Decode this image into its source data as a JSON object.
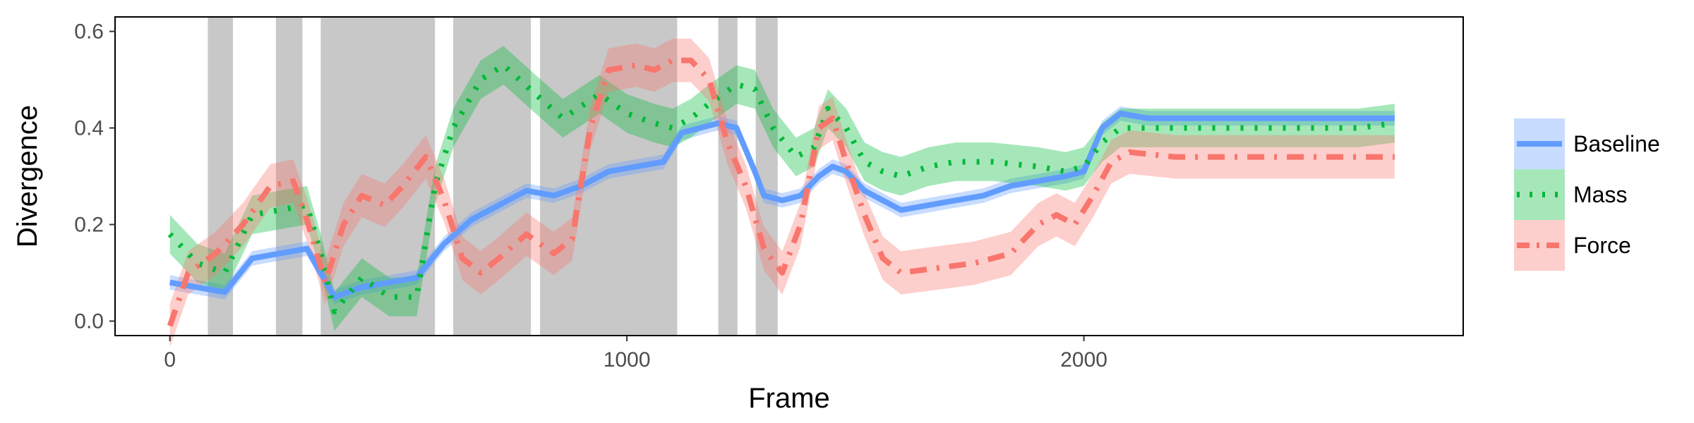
{
  "chart_data": {
    "type": "line",
    "title": "",
    "xlabel": "Frame",
    "ylabel": "Divergence",
    "xlim": [
      -120,
      2830
    ],
    "ylim": [
      -0.03,
      0.63
    ],
    "x_ticks": [
      0,
      1000,
      2000
    ],
    "x_tick_labels": [
      "0",
      "1000",
      "2000"
    ],
    "y_ticks": [
      0.0,
      0.2,
      0.4,
      0.6
    ],
    "y_tick_labels": [
      "0.0",
      "0.2",
      "0.4",
      "0.6"
    ],
    "grid": false,
    "legend_position": "right",
    "shaded_intervals": [
      [
        83,
        138
      ],
      [
        232,
        290
      ],
      [
        330,
        580
      ],
      [
        620,
        790
      ],
      [
        810,
        1110
      ],
      [
        1200,
        1242
      ],
      [
        1282,
        1330
      ]
    ],
    "series": [
      {
        "name": "Baseline",
        "color": "#619CFF",
        "linestyle": "solid",
        "band_halfwidth": 0.015,
        "x": [
          0,
          60,
          120,
          180,
          240,
          300,
          330,
          360,
          420,
          480,
          540,
          600,
          660,
          720,
          780,
          840,
          900,
          960,
          1020,
          1080,
          1120,
          1160,
          1200,
          1240,
          1280,
          1300,
          1340,
          1380,
          1420,
          1450,
          1480,
          1520,
          1560,
          1600,
          1660,
          1720,
          1780,
          1840,
          1900,
          1960,
          2000,
          2040,
          2080,
          2140,
          2200,
          2400,
          2600,
          2680
        ],
        "y": [
          0.08,
          0.07,
          0.06,
          0.13,
          0.14,
          0.15,
          0.1,
          0.05,
          0.07,
          0.08,
          0.09,
          0.16,
          0.21,
          0.24,
          0.27,
          0.26,
          0.28,
          0.31,
          0.32,
          0.33,
          0.39,
          0.4,
          0.41,
          0.4,
          0.31,
          0.26,
          0.25,
          0.26,
          0.3,
          0.32,
          0.31,
          0.27,
          0.25,
          0.23,
          0.24,
          0.25,
          0.26,
          0.28,
          0.29,
          0.3,
          0.31,
          0.4,
          0.43,
          0.42,
          0.42,
          0.42,
          0.42,
          0.42
        ]
      },
      {
        "name": "Mass",
        "color": "#00BA38",
        "linestyle": "dotted",
        "band_halfwidth": 0.04,
        "x": [
          0,
          60,
          120,
          180,
          240,
          300,
          330,
          360,
          420,
          480,
          540,
          580,
          620,
          680,
          730,
          800,
          860,
          940,
          1000,
          1060,
          1100,
          1140,
          1180,
          1240,
          1280,
          1320,
          1370,
          1410,
          1440,
          1480,
          1520,
          1560,
          1600,
          1660,
          1720,
          1800,
          1900,
          1960,
          2000,
          2040,
          2080,
          2140,
          2200,
          2400,
          2600,
          2680
        ],
        "y": [
          0.18,
          0.12,
          0.1,
          0.22,
          0.23,
          0.24,
          0.14,
          0.02,
          0.09,
          0.05,
          0.05,
          0.28,
          0.4,
          0.5,
          0.53,
          0.47,
          0.42,
          0.47,
          0.43,
          0.41,
          0.4,
          0.42,
          0.45,
          0.49,
          0.48,
          0.4,
          0.34,
          0.36,
          0.44,
          0.4,
          0.33,
          0.31,
          0.3,
          0.32,
          0.33,
          0.33,
          0.32,
          0.31,
          0.32,
          0.37,
          0.4,
          0.4,
          0.4,
          0.4,
          0.4,
          0.41
        ]
      },
      {
        "name": "Force",
        "color": "#F8766D",
        "linestyle": "dashdot",
        "band_halfwidth": 0.045,
        "x": [
          0,
          40,
          100,
          160,
          220,
          270,
          300,
          340,
          380,
          420,
          470,
          510,
          560,
          600,
          640,
          680,
          720,
          780,
          840,
          880,
          920,
          960,
          1020,
          1060,
          1100,
          1140,
          1180,
          1220,
          1260,
          1300,
          1340,
          1380,
          1420,
          1450,
          1480,
          1520,
          1560,
          1600,
          1680,
          1760,
          1840,
          1900,
          1940,
          1980,
          2020,
          2060,
          2100,
          2200,
          2400,
          2600,
          2680
        ],
        "y": [
          -0.01,
          0.1,
          0.14,
          0.2,
          0.28,
          0.29,
          0.21,
          0.08,
          0.2,
          0.26,
          0.24,
          0.28,
          0.34,
          0.25,
          0.13,
          0.1,
          0.13,
          0.18,
          0.14,
          0.17,
          0.4,
          0.52,
          0.53,
          0.52,
          0.54,
          0.54,
          0.5,
          0.37,
          0.28,
          0.15,
          0.1,
          0.2,
          0.4,
          0.42,
          0.33,
          0.22,
          0.13,
          0.1,
          0.11,
          0.12,
          0.14,
          0.2,
          0.22,
          0.2,
          0.26,
          0.33,
          0.35,
          0.34,
          0.34,
          0.34,
          0.34
        ]
      }
    ]
  }
}
